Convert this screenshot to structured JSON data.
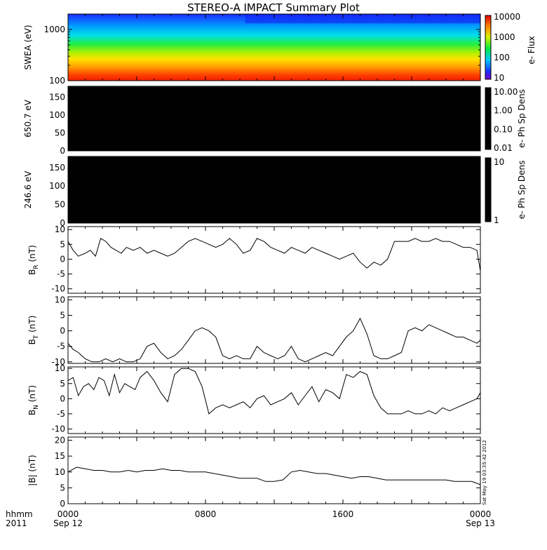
{
  "title": "STEREO-A IMPACT Summary Plot",
  "footer": {
    "hhmm": "hhmm",
    "year": "2011",
    "x_ticks": [
      "0000",
      "0800",
      "1600",
      "0000"
    ],
    "x_dates": [
      "Sep 12",
      "",
      "",
      "Sep 13"
    ],
    "timestamp": "Sat May 19 03:35:42 2012"
  },
  "colors": {
    "ink": "#000000",
    "background": "#ffffff",
    "spectrogram_palette": "rainbow"
  },
  "chart_data": [
    {
      "type": "heatmap",
      "ylabel": "SWEA (eV)",
      "yscale": "log",
      "ylim": [
        100,
        2000
      ],
      "yticks": [
        "1000",
        "100"
      ],
      "colorbar_label": "e- Flux",
      "colorbar_ticks": [
        "10000",
        "1000",
        "100",
        "10"
      ],
      "colorbar_range": [
        10,
        10000
      ],
      "x_range_hours": [
        0,
        24
      ],
      "description": "flux decreasing with energy; near 10000 at 100 eV, near 10 at 2000 eV"
    },
    {
      "type": "heatmap",
      "ylabel": "650.7 eV",
      "ylim": [
        0,
        180
      ],
      "yticks": [
        "150",
        "100",
        "50",
        "0"
      ],
      "colorbar_label": "e- Ph Sp Dens",
      "colorbar_ticks": [
        "10.00",
        "1.00",
        "0.10",
        "0.01"
      ],
      "fill": "black"
    },
    {
      "type": "heatmap",
      "ylabel": "246.6 eV",
      "ylim": [
        0,
        180
      ],
      "yticks": [
        "150",
        "100",
        "50",
        "0"
      ],
      "colorbar_label": "e- Ph Sp Dens",
      "colorbar_ticks": [
        "10",
        "1"
      ],
      "fill": "black"
    },
    {
      "type": "line",
      "ylabel_main": "B",
      "ylabel_sub": "R",
      "ylabel_unit": "(nT)",
      "ylim": [
        -12,
        11
      ],
      "yticks": [
        "10",
        "5",
        "0",
        "-5",
        "-10"
      ],
      "xlim": [
        0,
        24
      ],
      "x": [
        0,
        0.3,
        0.6,
        1,
        1.3,
        1.6,
        1.9,
        2.2,
        2.5,
        2.8,
        3.1,
        3.4,
        3.8,
        4.2,
        4.6,
        5,
        5.4,
        5.8,
        6.2,
        6.6,
        7,
        7.4,
        7.8,
        8.2,
        8.6,
        9,
        9.4,
        9.8,
        10.2,
        10.6,
        11,
        11.4,
        11.8,
        12.2,
        12.6,
        13,
        13.4,
        13.8,
        14.2,
        14.6,
        15,
        15.4,
        15.8,
        16.2,
        16.6,
        17,
        17.4,
        17.8,
        18.2,
        18.6,
        19,
        19.4,
        19.8,
        20.2,
        20.6,
        21,
        21.4,
        21.8,
        22.2,
        22.6,
        23,
        23.4,
        23.8,
        24
      ],
      "y": [
        6,
        3,
        1,
        2,
        3,
        1,
        7,
        6,
        4,
        3,
        2,
        4,
        3,
        4,
        2,
        3,
        2,
        1,
        2,
        4,
        6,
        7,
        6,
        5,
        4,
        5,
        7,
        5,
        2,
        3,
        7,
        6,
        4,
        3,
        2,
        4,
        3,
        2,
        4,
        3,
        2,
        1,
        0,
        1,
        2,
        -1,
        -3,
        -1,
        -2,
        0,
        6,
        6,
        6,
        7,
        6,
        6,
        7,
        6,
        6,
        5,
        4,
        4,
        3,
        -4
      ]
    },
    {
      "type": "line",
      "ylabel_main": "B",
      "ylabel_sub": "T",
      "ylabel_unit": "(nT)",
      "ylim": [
        -10,
        11
      ],
      "yticks": [
        "10",
        "5",
        "0",
        "-5",
        "-10"
      ],
      "xlim": [
        0,
        24
      ],
      "x": [
        0,
        0.3,
        0.6,
        1,
        1.4,
        1.8,
        2.2,
        2.6,
        3,
        3.4,
        3.8,
        4.2,
        4.6,
        5,
        5.4,
        5.8,
        6.2,
        6.6,
        7,
        7.4,
        7.8,
        8.2,
        8.6,
        9,
        9.4,
        9.8,
        10.2,
        10.6,
        11,
        11.4,
        11.8,
        12.2,
        12.6,
        13,
        13.4,
        13.8,
        14.2,
        14.6,
        15,
        15.4,
        15.8,
        16.2,
        16.6,
        17,
        17.4,
        17.8,
        18.2,
        18.6,
        19,
        19.4,
        19.8,
        20.2,
        20.6,
        21,
        21.4,
        21.8,
        22.2,
        22.6,
        23,
        23.4,
        23.8,
        24
      ],
      "y": [
        -4,
        -6,
        -7,
        -9,
        -10,
        -10,
        -9,
        -10,
        -9,
        -10,
        -10,
        -9,
        -5,
        -4,
        -7,
        -9,
        -8,
        -6,
        -3,
        0,
        1,
        0,
        -2,
        -8,
        -9,
        -8,
        -9,
        -9,
        -5,
        -7,
        -8,
        -9,
        -8,
        -5,
        -9,
        -10,
        -9,
        -8,
        -7,
        -8,
        -5,
        -2,
        0,
        4,
        -1,
        -8,
        -9,
        -9,
        -8,
        -7,
        0,
        1,
        0,
        2,
        1,
        0,
        -1,
        -2,
        -2,
        -3,
        -4,
        -3
      ]
    },
    {
      "type": "line",
      "ylabel_main": "B",
      "ylabel_sub": "N",
      "ylabel_unit": "(nT)",
      "ylim": [
        -10,
        10
      ],
      "yticks": [
        "10",
        "5",
        "0",
        "-5",
        "-10"
      ],
      "xlim": [
        0,
        24
      ],
      "x": [
        0,
        0.3,
        0.6,
        0.9,
        1.2,
        1.5,
        1.8,
        2.1,
        2.4,
        2.7,
        3,
        3.3,
        3.6,
        3.9,
        4.2,
        4.6,
        5,
        5.4,
        5.8,
        6.2,
        6.6,
        7,
        7.4,
        7.8,
        8.2,
        8.6,
        9,
        9.4,
        9.8,
        10.2,
        10.6,
        11,
        11.4,
        11.8,
        12.2,
        12.6,
        13,
        13.4,
        13.8,
        14.2,
        14.6,
        15,
        15.4,
        15.8,
        16.2,
        16.6,
        17,
        17.4,
        17.8,
        18.2,
        18.6,
        19,
        19.4,
        19.8,
        20.2,
        20.6,
        21,
        21.4,
        21.8,
        22.2,
        22.6,
        23,
        23.4,
        23.8,
        24
      ],
      "y": [
        6,
        7,
        1,
        4,
        5,
        3,
        7,
        6,
        1,
        8,
        2,
        5,
        4,
        3,
        7,
        9,
        6,
        2,
        -1,
        8,
        10,
        10,
        9,
        4,
        -5,
        -3,
        -2,
        -3,
        -2,
        -1,
        -3,
        0,
        1,
        -2,
        -1,
        0,
        2,
        -2,
        1,
        4,
        -1,
        3,
        2,
        0,
        8,
        7,
        9,
        8,
        1,
        -3,
        -5,
        -5,
        -5,
        -4,
        -5,
        -5,
        -4,
        -5,
        -3,
        -4,
        -3,
        -2,
        -1,
        0,
        2
      ]
    },
    {
      "type": "line",
      "ylabel_main": "|B|",
      "ylabel_sub": "",
      "ylabel_unit": "(nT)",
      "ylim": [
        0,
        20
      ],
      "yticks": [
        "20",
        "15",
        "10",
        "5",
        "0"
      ],
      "xlim": [
        0,
        24
      ],
      "x": [
        0,
        0.5,
        1,
        1.5,
        2,
        2.5,
        3,
        3.5,
        4,
        4.5,
        5,
        5.5,
        6,
        6.5,
        7,
        7.5,
        8,
        8.5,
        9,
        9.5,
        10,
        10.5,
        11,
        11.5,
        12,
        12.5,
        13,
        13.5,
        14,
        14.5,
        15,
        15.5,
        16,
        16.5,
        17,
        17.5,
        18,
        18.5,
        19,
        19.5,
        20,
        20.5,
        21,
        21.5,
        22,
        22.5,
        23,
        23.5,
        24
      ],
      "y": [
        10,
        11.5,
        11,
        10.5,
        10.5,
        10,
        10,
        10.5,
        10,
        10.5,
        10.5,
        11,
        10.5,
        10.5,
        10,
        10,
        10,
        9.5,
        9,
        8.5,
        8,
        8,
        8,
        7,
        7,
        7.5,
        10,
        10.5,
        10,
        9.5,
        9.5,
        9,
        8.5,
        8,
        8.5,
        8.5,
        8,
        7.5,
        7.5,
        7.5,
        7.5,
        7.5,
        7.5,
        7.5,
        7.5,
        7,
        7,
        7,
        6
      ]
    }
  ]
}
